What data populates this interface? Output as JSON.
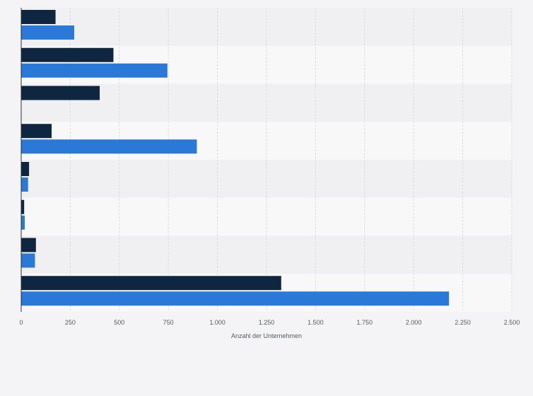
{
  "chart_data": {
    "type": "bar",
    "orientation": "horizontal",
    "categories": [
      "",
      "",
      "",
      "",
      "",
      "",
      "",
      ""
    ],
    "series": [
      {
        "color": "#0f2640",
        "values": [
          175,
          470,
          400,
          155,
          40,
          15,
          75,
          1325
        ]
      },
      {
        "color": "#2a78d8",
        "values": [
          270,
          745,
          0,
          895,
          35,
          18,
          70,
          2180
        ]
      }
    ],
    "xlabel": "Anzahl der Unternehmen",
    "xlim": [
      0,
      2500
    ],
    "xticks": [
      0,
      250,
      500,
      750,
      1000,
      1250,
      1500,
      1750,
      2000,
      2250,
      2500
    ],
    "xtick_labels": [
      "0",
      "250",
      "500",
      "750",
      "1.000",
      "1.250",
      "1.500",
      "1.750",
      "2.000",
      "2.250",
      "2.500"
    ],
    "grid": "vertical-dashed",
    "legend": "none"
  }
}
